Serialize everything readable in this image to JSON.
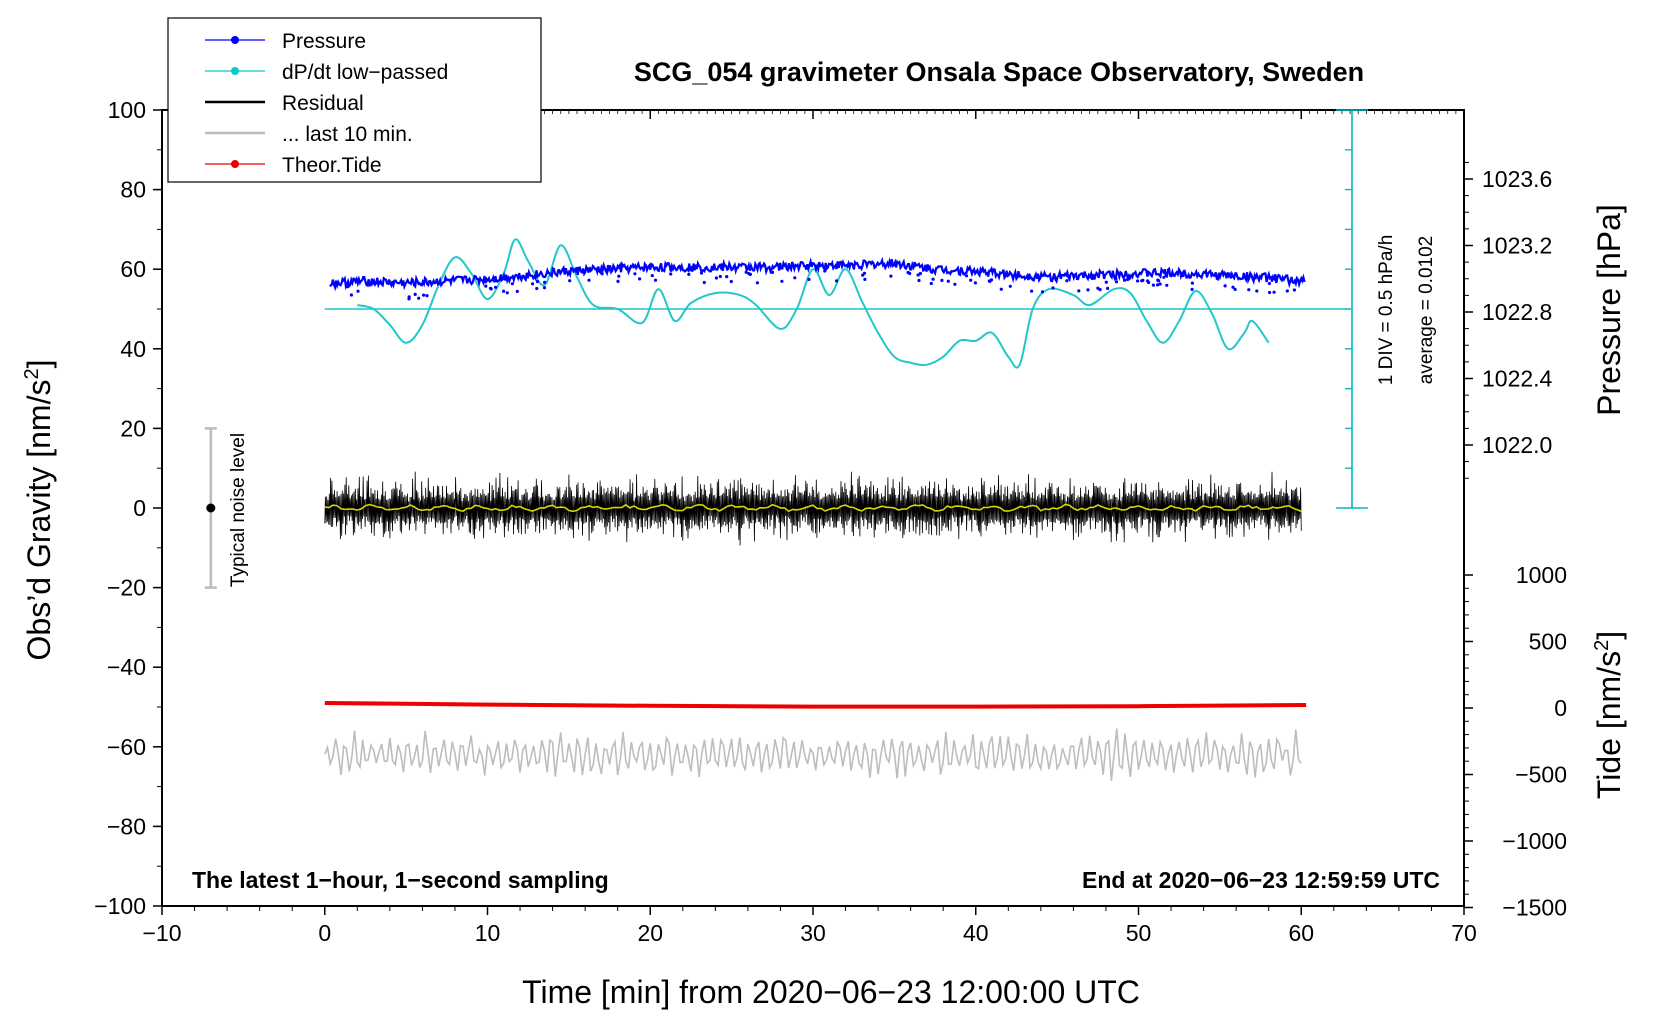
{
  "chart_data": {
    "type": "line",
    "title": "SCG_054 gravimeter Onsala Space Observatory, Sweden",
    "xlabel": "Time [min] from 2020−06−23 12:00:00 UTC",
    "ylabel_left": "Obs’d Gravity [nm/s",
    "ylabel_left_sup": "2",
    "ylabel_left_close": "]",
    "ylabel_right_pressure": "Pressure [hPa]",
    "ylabel_right_tide": "Tide [nm/s",
    "ylabel_right_tide_sup": "2",
    "ylabel_right_tide_close": "]",
    "xlim": [
      -10,
      70
    ],
    "ylim": [
      -100,
      100
    ],
    "x_ticks": [
      "−10",
      "0",
      "10",
      "20",
      "30",
      "40",
      "50",
      "60",
      "70"
    ],
    "y_ticks": [
      "100",
      "80",
      "60",
      "40",
      "20",
      "0",
      "−20",
      "−40",
      "−60",
      "−80",
      "−100"
    ],
    "pressure_ticks": [
      "1023.6",
      "1023.2",
      "1022.8",
      "1022.4",
      "1022.0"
    ],
    "tide_ticks": [
      "1000",
      "500",
      "0",
      "−500",
      "−1000",
      "−1500"
    ],
    "legend": [
      {
        "label": "Pressure",
        "color": "#0000ff",
        "style": "line-dot"
      },
      {
        "label": "dP/dt low−passed",
        "color": "#00cccc",
        "style": "line-dot"
      },
      {
        "label": "Residual",
        "color": "#000000",
        "style": "line"
      },
      {
        "label": "... last 10 min.",
        "color": "#bbbbbb",
        "style": "line"
      },
      {
        "label": "Theor.Tide",
        "color": "#ee0000",
        "style": "line-dot"
      }
    ],
    "annotations": {
      "bottom_left": "The latest 1−hour, 1−second sampling",
      "bottom_right": "End at 2020−06−23 12:59:59 UTC",
      "div_label": "1 DIV = 0.5 hPa/h",
      "average_label": "average = 0.0102",
      "noise_label": "Typical noise level"
    },
    "noise_bar": {
      "x": -7,
      "y_center": 0,
      "y_range": [
        -20,
        20
      ]
    },
    "dpdt_zero_level": 50,
    "series": {
      "pressure": {
        "name": "Pressure",
        "x": [
          0.5,
          2.5,
          5,
          7.5,
          10,
          12.5,
          15,
          17.5,
          20,
          22.5,
          25,
          27.5,
          30,
          32.5,
          35,
          37.5,
          40,
          42.5,
          45,
          47.5,
          50,
          52.5,
          55,
          57.5,
          60
        ],
        "y": [
          56.5,
          57,
          56.5,
          57,
          57.5,
          58.5,
          59.5,
          60,
          60.5,
          60.5,
          60.5,
          60.5,
          61,
          61,
          61.5,
          60,
          59.5,
          58.5,
          58,
          58.5,
          59,
          59,
          58.5,
          58,
          57
        ]
      },
      "dpdt": {
        "name": "dP/dt low−passed",
        "x": [
          2,
          3,
          4,
          5,
          6,
          7,
          8,
          9,
          10,
          11,
          11.7,
          12.5,
          13.5,
          14.5,
          15.5,
          16.5,
          18,
          19.5,
          20.5,
          21.5,
          22.5,
          24,
          25.5,
          26.5,
          28,
          29,
          30,
          31,
          32,
          33,
          34,
          35,
          36,
          37,
          38,
          39,
          40,
          41,
          42,
          42.7,
          43.5,
          44.5,
          46,
          47,
          48.5,
          49.5,
          50.5,
          51.5,
          52.5,
          53.5,
          54.5,
          55.5,
          56.5,
          57,
          58
        ],
        "y": [
          51,
          50,
          46,
          41.5,
          46,
          56,
          63,
          59,
          52.5,
          59,
          67.5,
          62,
          56,
          66,
          58,
          51,
          50,
          46.5,
          55,
          47,
          51.5,
          54,
          53.5,
          51,
          45,
          50,
          60,
          53.5,
          60,
          52,
          44,
          38,
          36.5,
          36,
          38,
          42,
          42,
          44,
          38,
          36,
          50,
          55,
          53.5,
          51,
          55,
          54,
          47,
          41.5,
          47,
          54.5,
          49,
          40,
          44,
          47,
          41.5
        ]
      },
      "tide": {
        "name": "Theor.Tide",
        "x": [
          0,
          10,
          20,
          30,
          40,
          50,
          60.3
        ],
        "y": [
          -49,
          -49.4,
          -49.7,
          -49.9,
          -49.9,
          -49.8,
          -49.5
        ]
      },
      "residual": {
        "name": "Residual",
        "x_range": [
          0,
          60
        ],
        "y_center": 0,
        "amplitude": 8
      },
      "last_10_min": {
        "name": "... last 10 min.",
        "x_range": [
          0,
          60
        ],
        "y_center": -62,
        "amplitude": 5
      }
    }
  }
}
